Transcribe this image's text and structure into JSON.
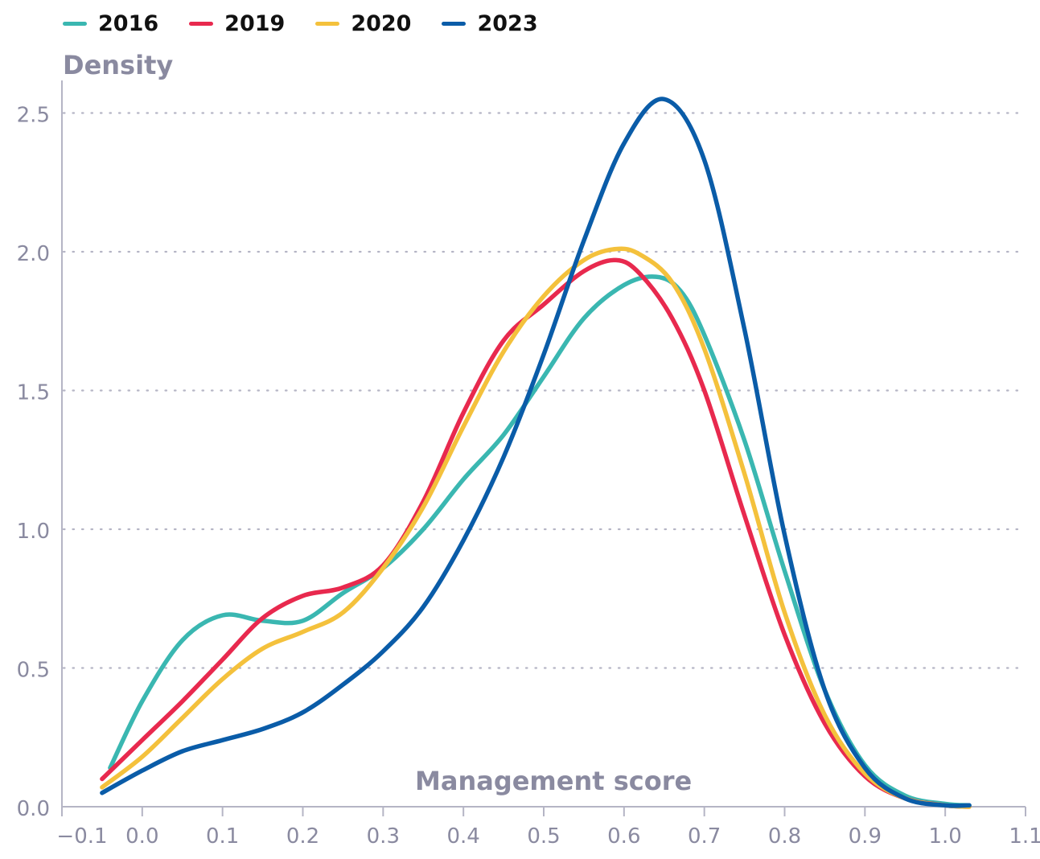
{
  "chart_data": {
    "type": "line",
    "title": "",
    "xlabel": "Management score",
    "ylabel": "Density",
    "xlim": [
      -0.1,
      1.1
    ],
    "ylim": [
      0,
      2.6
    ],
    "xticks": [
      -0.1,
      0.0,
      0.1,
      0.2,
      0.3,
      0.4,
      0.5,
      0.6,
      0.7,
      0.8,
      0.9,
      1.0,
      1.1
    ],
    "xtick_labels": [
      "−0.1",
      "0.0",
      "0.1",
      "0.2",
      "0.3",
      "0.4",
      "0.5",
      "0.6",
      "0.7",
      "0.8",
      "0.9",
      "1.0",
      "1.1"
    ],
    "yticks": [
      0.0,
      0.5,
      1.0,
      1.5,
      2.0,
      2.5
    ],
    "ytick_labels": [
      "0.0",
      "0.5",
      "1.0",
      "1.5",
      "2.0",
      "2.5"
    ],
    "grid": "horizontal dotted",
    "legend_position": "top-left",
    "series": [
      {
        "name": "2016",
        "color": "#3ab7b1",
        "x": [
          -0.04,
          0.0,
          0.05,
          0.1,
          0.15,
          0.2,
          0.25,
          0.3,
          0.35,
          0.4,
          0.45,
          0.5,
          0.55,
          0.6,
          0.64,
          0.67,
          0.7,
          0.75,
          0.8,
          0.85,
          0.9,
          0.95,
          1.0,
          1.03
        ],
        "y": [
          0.14,
          0.38,
          0.6,
          0.69,
          0.67,
          0.67,
          0.77,
          0.86,
          1.0,
          1.18,
          1.34,
          1.55,
          1.76,
          1.88,
          1.91,
          1.86,
          1.7,
          1.32,
          0.85,
          0.42,
          0.15,
          0.04,
          0.01,
          0.005
        ]
      },
      {
        "name": "2019",
        "color": "#e8294e",
        "x": [
          -0.05,
          0.0,
          0.05,
          0.1,
          0.15,
          0.2,
          0.25,
          0.3,
          0.35,
          0.4,
          0.45,
          0.5,
          0.55,
          0.59,
          0.62,
          0.66,
          0.7,
          0.75,
          0.8,
          0.85,
          0.9,
          0.95,
          1.0,
          1.03
        ],
        "y": [
          0.1,
          0.24,
          0.38,
          0.53,
          0.68,
          0.76,
          0.79,
          0.87,
          1.1,
          1.42,
          1.68,
          1.81,
          1.93,
          1.97,
          1.92,
          1.76,
          1.5,
          1.05,
          0.62,
          0.3,
          0.11,
          0.03,
          0.005,
          0.0
        ]
      },
      {
        "name": "2020",
        "color": "#f4c13c",
        "x": [
          -0.05,
          0.0,
          0.05,
          0.1,
          0.15,
          0.2,
          0.25,
          0.3,
          0.35,
          0.4,
          0.45,
          0.5,
          0.55,
          0.59,
          0.62,
          0.66,
          0.7,
          0.75,
          0.8,
          0.85,
          0.9,
          0.95,
          1.0,
          1.03
        ],
        "y": [
          0.07,
          0.18,
          0.32,
          0.46,
          0.57,
          0.63,
          0.7,
          0.86,
          1.08,
          1.37,
          1.64,
          1.84,
          1.97,
          2.01,
          1.99,
          1.89,
          1.65,
          1.2,
          0.7,
          0.33,
          0.12,
          0.03,
          0.005,
          0.0
        ]
      },
      {
        "name": "2023",
        "color": "#0a5ca8",
        "x": [
          -0.05,
          0.0,
          0.05,
          0.1,
          0.15,
          0.2,
          0.25,
          0.3,
          0.35,
          0.4,
          0.45,
          0.5,
          0.55,
          0.6,
          0.65,
          0.7,
          0.75,
          0.8,
          0.85,
          0.9,
          0.95,
          1.0,
          1.03
        ],
        "y": [
          0.05,
          0.13,
          0.2,
          0.24,
          0.28,
          0.34,
          0.44,
          0.56,
          0.72,
          0.96,
          1.26,
          1.63,
          2.04,
          2.39,
          2.55,
          2.33,
          1.72,
          0.98,
          0.42,
          0.14,
          0.03,
          0.005,
          0.005
        ]
      }
    ]
  },
  "colors": {
    "axis": "#b5b5c5",
    "grid": "#b5b5c5",
    "tick_text": "#8a8aa0"
  }
}
